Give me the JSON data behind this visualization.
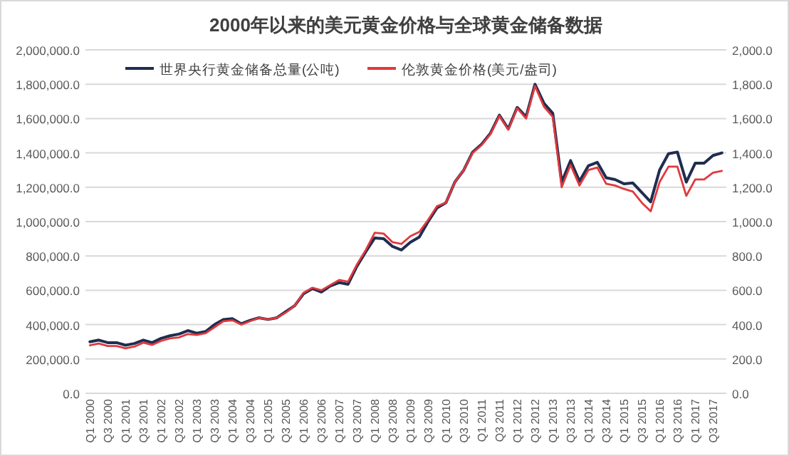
{
  "chart_data": {
    "type": "line",
    "title": "2000年以来的美元黄金价格与全球黄金储备数据",
    "categories": [
      "Q1 2000",
      null,
      "Q3 2000",
      null,
      "Q1 2001",
      null,
      "Q3 2001",
      null,
      "Q1 2002",
      null,
      "Q3 2002",
      null,
      "Q1 2003",
      null,
      "Q3 2003",
      null,
      "Q1 2004",
      null,
      "Q3 2004",
      null,
      "Q1 2005",
      null,
      "Q3 2005",
      null,
      "Q1 2006",
      null,
      "Q3 2006",
      null,
      "Q1 2007",
      null,
      "Q3 2007",
      null,
      "Q1 2008",
      null,
      "Q3 2008",
      null,
      "Q1 2009",
      null,
      "Q3 2009",
      null,
      "Q1 2010",
      null,
      "Q3 2010",
      null,
      "Q1 2011",
      null,
      "Q3 2011",
      null,
      "Q1 2012",
      null,
      "Q3 2012",
      null,
      "Q1 2013",
      null,
      "Q3 2013",
      null,
      "Q1 2014",
      null,
      "Q3 2014",
      null,
      "Q1 2015",
      null,
      "Q3 2015",
      null,
      "Q1 2016",
      null,
      "Q3 2016",
      null,
      "Q1 2017",
      null,
      "Q3 2017",
      null
    ],
    "series": [
      {
        "name": "世界央行黄金储备总量(公吨)",
        "color": "#1f2d4f",
        "axis": "y",
        "values": [
          300000,
          310000,
          295000,
          295000,
          280000,
          290000,
          310000,
          295000,
          320000,
          335000,
          345000,
          365000,
          350000,
          360000,
          400000,
          430000,
          435000,
          405000,
          425000,
          440000,
          430000,
          440000,
          475000,
          510000,
          580000,
          610000,
          590000,
          625000,
          645000,
          635000,
          740000,
          825000,
          905000,
          900000,
          855000,
          835000,
          880000,
          910000,
          1000000,
          1080000,
          1110000,
          1230000,
          1300000,
          1405000,
          1450000,
          1515000,
          1620000,
          1540000,
          1665000,
          1610000,
          1800000,
          1690000,
          1630000,
          1230000,
          1355000,
          1235000,
          1325000,
          1345000,
          1255000,
          1245000,
          1220000,
          1225000,
          1170000,
          1115000,
          1300000,
          1395000,
          1405000,
          1230000,
          1340000,
          1340000,
          1385000,
          1400000
        ]
      },
      {
        "name": "伦敦黄金价格(美元/盎司)",
        "color": "#e0393e",
        "axis": "y2",
        "values": [
          280,
          290,
          275,
          275,
          262,
          272,
          295,
          282,
          305,
          320,
          325,
          345,
          340,
          350,
          385,
          420,
          425,
          400,
          420,
          440,
          430,
          440,
          470,
          510,
          585,
          615,
          600,
          630,
          660,
          650,
          750,
          835,
          935,
          930,
          880,
          870,
          915,
          940,
          1010,
          1090,
          1110,
          1230,
          1300,
          1400,
          1445,
          1510,
          1615,
          1535,
          1660,
          1600,
          1790,
          1670,
          1610,
          1200,
          1330,
          1210,
          1300,
          1315,
          1220,
          1210,
          1190,
          1175,
          1110,
          1060,
          1230,
          1320,
          1320,
          1150,
          1245,
          1245,
          1285,
          1295
        ]
      }
    ],
    "ylim": [
      0,
      2000000
    ],
    "yticks": [
      {
        "value": 0,
        "label": "0.0"
      },
      {
        "value": 200000,
        "label": "200,000.0"
      },
      {
        "value": 400000,
        "label": "400,000.0"
      },
      {
        "value": 600000,
        "label": "600,000.0"
      },
      {
        "value": 800000,
        "label": "800,000.0"
      },
      {
        "value": 1000000,
        "label": "1,000,000.0"
      },
      {
        "value": 1200000,
        "label": "1,200,000.0"
      },
      {
        "value": 1400000,
        "label": "1,400,000.0"
      },
      {
        "value": 1600000,
        "label": "1,600,000.0"
      },
      {
        "value": 1800000,
        "label": "1,800,000.0"
      },
      {
        "value": 2000000,
        "label": "2,000,000.0"
      }
    ],
    "y2lim": [
      0,
      2000
    ],
    "y2ticks": [
      {
        "value": 0,
        "label": "0.0"
      },
      {
        "value": 200,
        "label": "200.0"
      },
      {
        "value": 400,
        "label": "400.0"
      },
      {
        "value": 600,
        "label": "600.0"
      },
      {
        "value": 800,
        "label": "800.0"
      },
      {
        "value": 1000,
        "label": "1,000.0"
      },
      {
        "value": 1200,
        "label": "1,200.0"
      },
      {
        "value": 1400,
        "label": "1,400.0"
      },
      {
        "value": 1600,
        "label": "1,600.0"
      },
      {
        "value": 1800,
        "label": "1,800.0"
      },
      {
        "value": 2000,
        "label": "2,000.0"
      }
    ],
    "grid": "y",
    "legend": "top"
  }
}
